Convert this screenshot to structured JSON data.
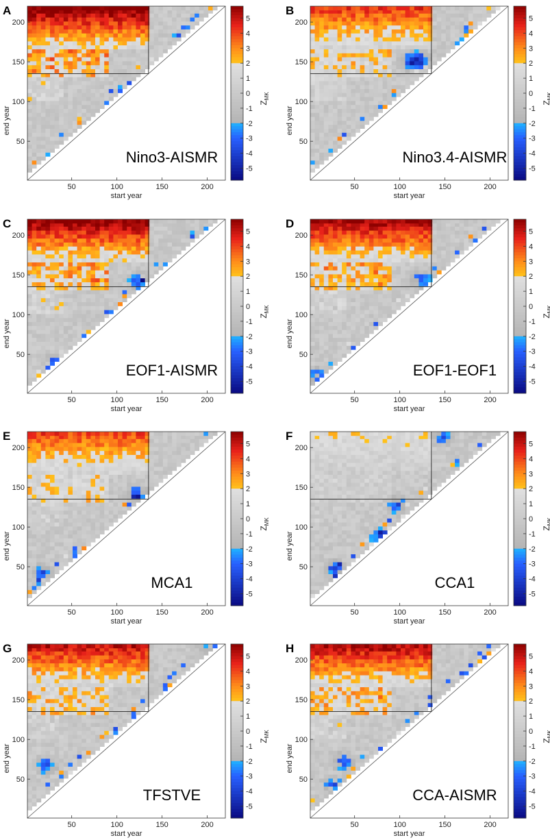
{
  "figure": {
    "colorbar": {
      "ticks": [
        "5",
        "4",
        "3",
        "2",
        "1",
        "0",
        "-1",
        "-2",
        "-3",
        "-4",
        "-5"
      ],
      "label_main": "Z",
      "label_sub": "MK",
      "colors": {
        "max": "#8b0000",
        "high": "#e8221a",
        "mid_high": "#ff8c1a",
        "low_high": "#ffc21a",
        "neutral_light": "#e0e0e0",
        "neutral_dark": "#9c9c9c",
        "low_neg": "#1fb3ff",
        "mid_neg": "#2860ff",
        "min": "#0a0a82"
      }
    }
  },
  "chart_data": [
    {
      "panel": "A",
      "label": "Nino3-AISMR",
      "type": "heatmap",
      "xlabel": "start year",
      "ylabel": "end year",
      "xticks": [
        "50",
        "100",
        "150",
        "200"
      ],
      "yticks": [
        "50",
        "100",
        "150",
        "200"
      ],
      "xlim": [
        1,
        220
      ],
      "ylim": [
        1,
        220
      ],
      "clim": [
        -5.8,
        5.8
      ],
      "reference_point": [
        135,
        135
      ],
      "intensity": 1.2,
      "neg": []
    },
    {
      "panel": "B",
      "label": "Nino3.4-AISMR",
      "type": "heatmap",
      "xlabel": "start year",
      "ylabel": "end year",
      "xticks": [
        "50",
        "100",
        "150",
        "200"
      ],
      "yticks": [
        "50",
        "100",
        "150",
        "200"
      ],
      "xlim": [
        1,
        220
      ],
      "ylim": [
        1,
        220
      ],
      "clim": [
        -5.8,
        5.8
      ],
      "reference_point": [
        135,
        135
      ],
      "intensity": 0.85,
      "neg": [
        [
          110,
          148
        ],
        [
          120,
          150
        ]
      ]
    },
    {
      "panel": "C",
      "label": "EOF1-AISMR",
      "type": "heatmap",
      "xlabel": "start year",
      "ylabel": "end year",
      "xticks": [
        "50",
        "100",
        "150",
        "200"
      ],
      "yticks": [
        "50",
        "100",
        "150",
        "200"
      ],
      "xlim": [
        1,
        220
      ],
      "ylim": [
        1,
        220
      ],
      "clim": [
        -5.8,
        5.8
      ],
      "reference_point": [
        135,
        135
      ],
      "intensity": 1.15,
      "neg": [
        [
          122,
          140
        ],
        [
          30,
          38
        ]
      ]
    },
    {
      "panel": "D",
      "label": "EOF1-EOF1",
      "type": "heatmap",
      "xlabel": "start year",
      "ylabel": "end year",
      "xticks": [
        "50",
        "100",
        "150",
        "200"
      ],
      "yticks": [
        "50",
        "100",
        "150",
        "200"
      ],
      "xlim": [
        1,
        220
      ],
      "ylim": [
        1,
        220
      ],
      "clim": [
        -5.8,
        5.8
      ],
      "reference_point": [
        135,
        135
      ],
      "intensity": 1.1,
      "neg": [
        [
          122,
          141
        ],
        [
          5,
          20
        ]
      ]
    },
    {
      "panel": "E",
      "label": "MCA1",
      "type": "heatmap",
      "xlabel": "start year",
      "ylabel": "end year",
      "xticks": [
        "50",
        "100",
        "150",
        "200"
      ],
      "yticks": [
        "50",
        "100",
        "150",
        "200"
      ],
      "xlim": [
        1,
        220
      ],
      "ylim": [
        1,
        220
      ],
      "clim": [
        -5.8,
        5.8
      ],
      "reference_point": [
        135,
        135
      ],
      "intensity": 0.8,
      "neg": [
        [
          120,
          140
        ],
        [
          15,
          40
        ]
      ]
    },
    {
      "panel": "F",
      "label": "CCA1",
      "type": "heatmap",
      "xlabel": "start year",
      "ylabel": "end year",
      "xticks": [
        "50",
        "100",
        "150",
        "200"
      ],
      "yticks": [
        "50",
        "100",
        "150",
        "200"
      ],
      "xlim": [
        1,
        220
      ],
      "ylim": [
        1,
        220
      ],
      "clim": [
        -5.8,
        5.8
      ],
      "reference_point": [
        135,
        135
      ],
      "intensity": 0.35,
      "neg": [
        [
          95,
          125
        ],
        [
          25,
          45
        ],
        [
          145,
          212
        ],
        [
          75,
          85
        ]
      ]
    },
    {
      "panel": "G",
      "label": "TFSTVE",
      "type": "heatmap",
      "xlabel": "start year",
      "ylabel": "end year",
      "xticks": [
        "50",
        "100",
        "150",
        "200"
      ],
      "yticks": [
        "50",
        "100",
        "150",
        "200"
      ],
      "xlim": [
        1,
        220
      ],
      "ylim": [
        1,
        220
      ],
      "clim": [
        -5.8,
        5.8
      ],
      "reference_point": [
        135,
        135
      ],
      "intensity": 1.0,
      "neg": [
        [
          20,
          65
        ],
        [
          200,
          218
        ]
      ]
    },
    {
      "panel": "H",
      "label": "CCA-AISMR",
      "type": "heatmap",
      "xlabel": "start year",
      "ylabel": "end year",
      "xticks": [
        "50",
        "100",
        "150",
        "200"
      ],
      "yticks": [
        "50",
        "100",
        "150",
        "200"
      ],
      "xlim": [
        1,
        220
      ],
      "ylim": [
        1,
        220
      ],
      "clim": [
        -5.8,
        5.8
      ],
      "reference_point": [
        135,
        135
      ],
      "intensity": 1.05,
      "neg": [
        [
          35,
          70
        ],
        [
          25,
          40
        ]
      ]
    }
  ]
}
